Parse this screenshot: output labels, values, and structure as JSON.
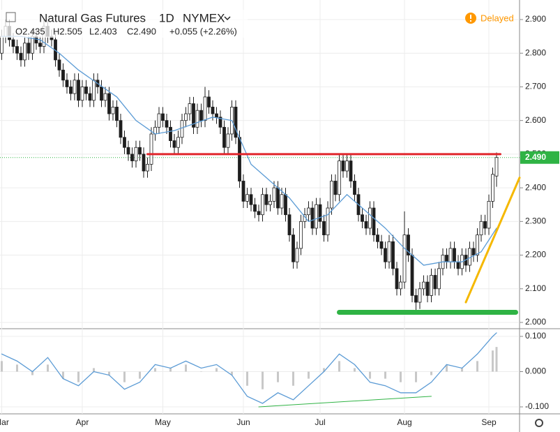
{
  "chart_data": {
    "type": "candlestick",
    "title": "Natural Gas Futures",
    "interval": "1D",
    "exchange": "NYMEX",
    "status": "Delayed",
    "header_values": [
      {
        "value": 2.435,
        "label": "O2.435"
      },
      {
        "value": 2.505,
        "label": "H2.505"
      },
      {
        "value": 2.403,
        "label": "L2.403"
      },
      {
        "value": 2.49,
        "label": "C2.490"
      }
    ],
    "change": {
      "value": 0.055,
      "label": "+0.055 (+2.26%)"
    },
    "last_price": {
      "value": 2.49,
      "label": "2.490"
    },
    "up_color": "#ffffff",
    "down_color": "#1e1e1e",
    "grid": true,
    "categories": [
      "Mar",
      null,
      null,
      null,
      null,
      null,
      null,
      null,
      null,
      null,
      null,
      null,
      null,
      null,
      null,
      null,
      null,
      null,
      null,
      null,
      null,
      "Apr",
      null,
      null,
      null,
      null,
      null,
      null,
      null,
      null,
      null,
      null,
      null,
      null,
      null,
      null,
      null,
      null,
      null,
      null,
      null,
      null,
      "May",
      null,
      null,
      null,
      null,
      null,
      null,
      null,
      null,
      null,
      null,
      null,
      null,
      null,
      null,
      null,
      null,
      null,
      null,
      null,
      null,
      "Jun",
      null,
      null,
      null,
      null,
      null,
      null,
      null,
      null,
      null,
      null,
      null,
      null,
      null,
      null,
      null,
      null,
      null,
      null,
      null,
      "Jul",
      null,
      null,
      null,
      null,
      null,
      null,
      null,
      null,
      null,
      null,
      null,
      null,
      null,
      null,
      null,
      null,
      null,
      null,
      null,
      null,
      null,
      "Aug",
      null,
      null,
      null,
      null,
      null,
      null,
      null,
      null,
      null,
      null,
      null,
      null,
      null,
      null,
      null,
      null,
      null,
      null,
      null,
      null,
      null,
      "Sep",
      null,
      null
    ],
    "open": [
      2.8,
      2.85,
      2.88,
      2.84,
      2.82,
      2.8,
      2.78,
      2.83,
      2.8,
      2.85,
      2.83,
      2.82,
      2.88,
      2.85,
      2.84,
      2.78,
      2.75,
      2.72,
      2.7,
      2.68,
      2.72,
      2.66,
      2.7,
      2.68,
      2.66,
      2.72,
      2.7,
      2.66,
      2.68,
      2.62,
      2.64,
      2.6,
      2.55,
      2.52,
      2.5,
      2.48,
      2.52,
      2.5,
      2.45,
      2.47,
      2.56,
      2.58,
      2.62,
      2.6,
      2.58,
      2.54,
      2.52,
      2.55,
      2.6,
      2.62,
      2.65,
      2.58,
      2.63,
      2.6,
      2.67,
      2.64,
      2.62,
      2.61,
      2.58,
      2.52,
      2.56,
      2.64,
      2.55,
      2.42,
      2.36,
      2.38,
      2.35,
      2.33,
      2.32,
      2.38,
      2.35,
      2.36,
      2.4,
      2.34,
      2.38,
      2.32,
      2.26,
      2.18,
      2.22,
      2.3,
      2.32,
      2.34,
      2.28,
      2.35,
      2.3,
      2.26,
      2.34,
      2.42,
      2.38,
      2.48,
      2.45,
      2.48,
      2.42,
      2.38,
      2.32,
      2.3,
      2.28,
      2.34,
      2.26,
      2.24,
      2.22,
      2.18,
      2.24,
      2.16,
      2.1,
      2.12,
      2.26,
      2.2,
      2.08,
      2.06,
      2.1,
      2.12,
      2.08,
      2.14,
      2.1,
      2.16,
      2.2,
      2.18,
      2.22,
      2.18,
      2.16,
      2.2,
      2.17,
      2.22,
      2.2,
      2.26,
      2.3,
      2.28,
      2.36,
      2.435
    ],
    "high": [
      2.87,
      2.9,
      2.9,
      2.86,
      2.84,
      2.82,
      2.85,
      2.85,
      2.87,
      2.87,
      2.85,
      2.9,
      2.9,
      2.87,
      2.86,
      2.8,
      2.77,
      2.74,
      2.72,
      2.74,
      2.74,
      2.72,
      2.72,
      2.7,
      2.74,
      2.74,
      2.72,
      2.7,
      2.7,
      2.66,
      2.66,
      2.62,
      2.57,
      2.54,
      2.52,
      2.54,
      2.54,
      2.52,
      2.49,
      2.58,
      2.6,
      2.64,
      2.64,
      2.62,
      2.6,
      2.56,
      2.57,
      2.62,
      2.64,
      2.67,
      2.67,
      2.65,
      2.65,
      2.7,
      2.69,
      2.66,
      2.64,
      2.63,
      2.6,
      2.58,
      2.66,
      2.66,
      2.57,
      2.44,
      2.4,
      2.4,
      2.37,
      2.35,
      2.4,
      2.4,
      2.38,
      2.42,
      2.42,
      2.4,
      2.4,
      2.34,
      2.28,
      2.24,
      2.32,
      2.34,
      2.36,
      2.36,
      2.37,
      2.37,
      2.32,
      2.36,
      2.44,
      2.44,
      2.5,
      2.5,
      2.5,
      2.5,
      2.44,
      2.4,
      2.34,
      2.32,
      2.36,
      2.36,
      2.28,
      2.26,
      2.24,
      2.26,
      2.26,
      2.18,
      2.14,
      2.33,
      2.28,
      2.22,
      2.1,
      2.12,
      2.14,
      2.14,
      2.16,
      2.16,
      2.18,
      2.22,
      2.22,
      2.24,
      2.24,
      2.2,
      2.22,
      2.22,
      2.24,
      2.24,
      2.28,
      2.32,
      2.32,
      2.38,
      2.46,
      2.505
    ],
    "low": [
      2.78,
      2.83,
      2.82,
      2.8,
      2.78,
      2.76,
      2.76,
      2.78,
      2.78,
      2.81,
      2.8,
      2.8,
      2.83,
      2.82,
      2.76,
      2.73,
      2.7,
      2.68,
      2.66,
      2.66,
      2.64,
      2.64,
      2.66,
      2.64,
      2.64,
      2.68,
      2.64,
      2.64,
      2.6,
      2.6,
      2.58,
      2.53,
      2.5,
      2.48,
      2.46,
      2.46,
      2.48,
      2.43,
      2.43,
      2.45,
      2.54,
      2.56,
      2.58,
      2.56,
      2.52,
      2.5,
      2.5,
      2.53,
      2.58,
      2.6,
      2.56,
      2.56,
      2.58,
      2.58,
      2.62,
      2.6,
      2.59,
      2.56,
      2.5,
      2.5,
      2.54,
      2.53,
      2.4,
      2.34,
      2.34,
      2.33,
      2.31,
      2.3,
      2.3,
      2.33,
      2.33,
      2.34,
      2.32,
      2.32,
      2.3,
      2.24,
      2.16,
      2.16,
      2.2,
      2.28,
      2.3,
      2.26,
      2.26,
      2.28,
      2.24,
      2.24,
      2.32,
      2.36,
      2.36,
      2.43,
      2.43,
      2.4,
      2.36,
      2.3,
      2.28,
      2.26,
      2.26,
      2.24,
      2.22,
      2.2,
      2.16,
      2.16,
      2.14,
      2.08,
      2.08,
      2.1,
      2.18,
      2.06,
      2.03,
      2.04,
      2.08,
      2.06,
      2.06,
      2.08,
      2.08,
      2.14,
      2.16,
      2.16,
      2.16,
      2.14,
      2.14,
      2.15,
      2.15,
      2.18,
      2.18,
      2.24,
      2.26,
      2.26,
      2.34,
      2.403
    ],
    "close": [
      2.85,
      2.88,
      2.84,
      2.82,
      2.8,
      2.78,
      2.83,
      2.8,
      2.85,
      2.83,
      2.82,
      2.88,
      2.85,
      2.84,
      2.78,
      2.75,
      2.72,
      2.7,
      2.68,
      2.72,
      2.66,
      2.7,
      2.68,
      2.66,
      2.72,
      2.7,
      2.66,
      2.68,
      2.62,
      2.64,
      2.6,
      2.55,
      2.52,
      2.5,
      2.48,
      2.52,
      2.5,
      2.45,
      2.47,
      2.56,
      2.58,
      2.62,
      2.6,
      2.58,
      2.54,
      2.52,
      2.55,
      2.6,
      2.62,
      2.65,
      2.58,
      2.63,
      2.6,
      2.67,
      2.64,
      2.62,
      2.61,
      2.58,
      2.52,
      2.56,
      2.64,
      2.55,
      2.42,
      2.36,
      2.38,
      2.35,
      2.33,
      2.32,
      2.38,
      2.35,
      2.36,
      2.4,
      2.34,
      2.38,
      2.32,
      2.26,
      2.18,
      2.22,
      2.3,
      2.32,
      2.34,
      2.28,
      2.35,
      2.3,
      2.26,
      2.34,
      2.42,
      2.38,
      2.48,
      2.45,
      2.48,
      2.42,
      2.38,
      2.32,
      2.3,
      2.28,
      2.34,
      2.26,
      2.24,
      2.22,
      2.18,
      2.24,
      2.16,
      2.1,
      2.12,
      2.26,
      2.2,
      2.08,
      2.06,
      2.1,
      2.12,
      2.08,
      2.14,
      2.1,
      2.16,
      2.2,
      2.18,
      2.22,
      2.18,
      2.16,
      2.2,
      2.17,
      2.22,
      2.2,
      2.26,
      2.3,
      2.28,
      2.36,
      2.44,
      2.49
    ],
    "moving_average": {
      "color": "#5b9bd5",
      "x": [
        0,
        5,
        10,
        15,
        20,
        25,
        30,
        35,
        40,
        45,
        50,
        55,
        60,
        65,
        70,
        75,
        80,
        85,
        90,
        95,
        100,
        105,
        110,
        115,
        120,
        125,
        129
      ],
      "values": [
        2.85,
        2.85,
        2.84,
        2.8,
        2.75,
        2.71,
        2.67,
        2.6,
        2.56,
        2.57,
        2.59,
        2.61,
        2.6,
        2.47,
        2.42,
        2.37,
        2.3,
        2.32,
        2.38,
        2.33,
        2.28,
        2.22,
        2.17,
        2.18,
        2.18,
        2.21,
        2.28
      ]
    },
    "ylim": [
      2.0,
      2.9
    ],
    "yticks": [
      {
        "value": 2.0,
        "label": "2.000"
      },
      {
        "value": 2.1,
        "label": "2.100"
      },
      {
        "value": 2.2,
        "label": "2.200"
      },
      {
        "value": 2.3,
        "label": "2.300"
      },
      {
        "value": 2.4,
        "label": "2.400"
      },
      {
        "value": 2.5,
        "label": "2.500"
      },
      {
        "value": 2.6,
        "label": "2.600"
      },
      {
        "value": 2.7,
        "label": "2.700"
      },
      {
        "value": 2.8,
        "label": "2.800"
      },
      {
        "value": 2.9,
        "label": "2.900"
      }
    ],
    "drawings": [
      {
        "color": "#e0262b",
        "x": [
          38,
          130
        ],
        "values": [
          2.5,
          2.5
        ]
      },
      {
        "color": "#2fb344",
        "x": [
          88,
          134
        ],
        "values": [
          2.03,
          2.03
        ]
      },
      {
        "color": "#f5b800",
        "x": [
          121,
          135
        ],
        "values": [
          2.06,
          2.43
        ]
      }
    ],
    "oscillator": {
      "color": "#5b9bd5",
      "histogram_color": "#c8c8c8",
      "x": [
        0,
        4,
        8,
        12,
        16,
        20,
        24,
        28,
        32,
        36,
        40,
        44,
        48,
        52,
        56,
        60,
        64,
        68,
        72,
        76,
        80,
        84,
        88,
        92,
        96,
        100,
        104,
        108,
        112,
        116,
        120,
        124,
        128,
        129
      ],
      "values": [
        0.05,
        0.03,
        0.0,
        0.04,
        -0.02,
        -0.04,
        0.0,
        -0.01,
        -0.05,
        -0.03,
        0.02,
        0.01,
        0.03,
        0.01,
        0.02,
        -0.01,
        -0.07,
        -0.09,
        -0.06,
        -0.08,
        -0.04,
        0.0,
        0.05,
        0.02,
        -0.03,
        -0.04,
        -0.06,
        -0.06,
        -0.03,
        0.02,
        0.01,
        0.05,
        0.1,
        0.11
      ],
      "histogram": [
        0.03,
        0.02,
        -0.01,
        0.02,
        -0.02,
        -0.03,
        0.01,
        -0.01,
        -0.03,
        -0.02,
        0.01,
        0.01,
        0.02,
        0.0,
        0.01,
        -0.01,
        -0.04,
        -0.05,
        -0.03,
        -0.04,
        -0.02,
        0.01,
        0.03,
        0.01,
        -0.02,
        -0.02,
        -0.03,
        -0.03,
        -0.01,
        0.02,
        0.01,
        0.03,
        0.06,
        0.07
      ],
      "trendline": {
        "color": "#2fb344",
        "x": [
          67,
          112
        ],
        "values": [
          -0.1,
          -0.07
        ]
      },
      "ylim": [
        -0.1,
        0.1
      ],
      "yticks": [
        {
          "value": 0.1,
          "label": "0.100"
        },
        {
          "value": 0.0,
          "label": "0.000"
        },
        {
          "value": -0.1,
          "label": "-0.100"
        }
      ]
    }
  }
}
